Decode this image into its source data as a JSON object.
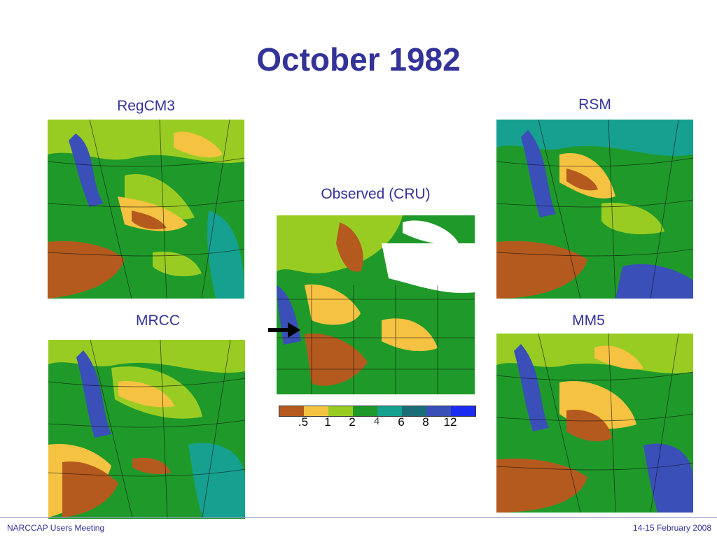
{
  "slide": {
    "title": "October 1982",
    "panels": {
      "regcm3": "RegCM3",
      "rsm": "RSM",
      "observed": "Observed (CRU)",
      "mrcc": "MRCC",
      "mm5": "MM5"
    },
    "legend": {
      "colors": [
        "#b55a1e",
        "#f5c242",
        "#99cc22",
        "#1f9a2a",
        "#16a090",
        "#1a6e78",
        "#3a4fb8",
        "#1a2cf0"
      ],
      "ticks": [
        ".5",
        "1",
        "2",
        "4",
        "6",
        "8",
        "12"
      ]
    }
  },
  "footer": {
    "left": "NARCCAP Users Meeting",
    "right": "14-15 February 2008"
  }
}
